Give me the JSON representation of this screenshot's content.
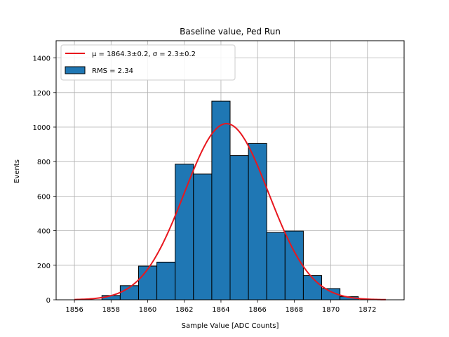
{
  "chart_data": {
    "type": "bar",
    "title": "Baseline value, Ped Run",
    "xlabel": "Sample Value [ADC Counts]",
    "ylabel": "Events",
    "xlim": [
      1855,
      1874
    ],
    "ylim": [
      0,
      1500
    ],
    "grid": true,
    "legend_position": "top-left",
    "x_ticks": [
      1856,
      1858,
      1860,
      1862,
      1864,
      1866,
      1868,
      1870,
      1872
    ],
    "y_ticks": [
      0,
      200,
      400,
      600,
      800,
      1000,
      1200,
      1400
    ],
    "bins": [
      {
        "x0": 1857.5,
        "x1": 1858.5,
        "count": 25
      },
      {
        "x0": 1858.5,
        "x1": 1859.5,
        "count": 82
      },
      {
        "x0": 1859.5,
        "x1": 1860.5,
        "count": 195
      },
      {
        "x0": 1860.5,
        "x1": 1861.5,
        "count": 218
      },
      {
        "x0": 1861.5,
        "x1": 1862.5,
        "count": 785
      },
      {
        "x0": 1862.5,
        "x1": 1863.5,
        "count": 728
      },
      {
        "x0": 1863.5,
        "x1": 1864.5,
        "count": 1150
      },
      {
        "x0": 1864.5,
        "x1": 1865.5,
        "count": 835
      },
      {
        "x0": 1865.5,
        "x1": 1866.5,
        "count": 905
      },
      {
        "x0": 1866.5,
        "x1": 1867.5,
        "count": 390
      },
      {
        "x0": 1867.5,
        "x1": 1868.5,
        "count": 398
      },
      {
        "x0": 1868.5,
        "x1": 1869.5,
        "count": 140
      },
      {
        "x0": 1869.5,
        "x1": 1870.5,
        "count": 65
      },
      {
        "x0": 1870.5,
        "x1": 1871.5,
        "count": 18
      }
    ],
    "fit": {
      "mean": 1864.3,
      "sigma": 2.3,
      "amplitude": 1020,
      "x_range": [
        1856,
        1873
      ]
    },
    "legend": {
      "fit_label": "μ = 1864.3±0.2, σ = 2.3±0.2",
      "hist_label": "RMS = 2.34"
    },
    "colors": {
      "bar_fill": "#1f77b4",
      "bar_edge": "#000000",
      "fit_line": "#e8171e",
      "grid": "#b0b0b0"
    }
  }
}
